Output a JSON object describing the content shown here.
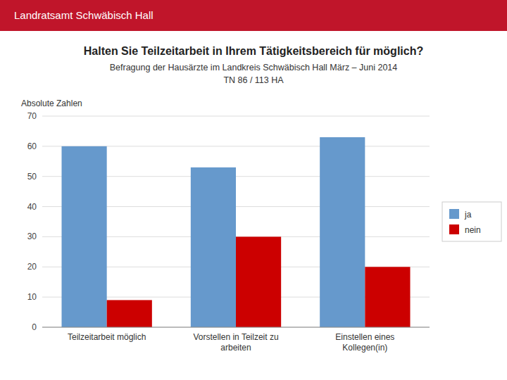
{
  "chart_data": {
    "type": "bar",
    "title": "Halten Sie Teilzeitarbeit in Ihrem Tätigkeitsbereich für möglich?",
    "subtitle": [
      "Befragung der Hausärzte im Landkreis Schwäbisch Hall März – Juni 2014",
      "TN 86 / 113 HA"
    ],
    "annotations": [
      "Landratsamt Schwäbisch Hall"
    ],
    "y_label": "Absolute Zahlen",
    "categories": [
      "Teilzeitarbeit möglich",
      "Vorstellen in Teilzeit zu\narbeiten",
      "Einstellen eines\nKollegen(in)"
    ],
    "series": [
      {
        "name": "ja",
        "color": "#6699CC",
        "values": [
          60,
          53,
          63
        ]
      },
      {
        "name": "nein",
        "color": "#CC0000",
        "values": [
          9,
          30,
          20
        ]
      }
    ],
    "ylim": [
      0,
      70
    ],
    "yticks": [
      0,
      10,
      20,
      30,
      40,
      50,
      60,
      70
    ],
    "grid": true,
    "legend": "right"
  }
}
